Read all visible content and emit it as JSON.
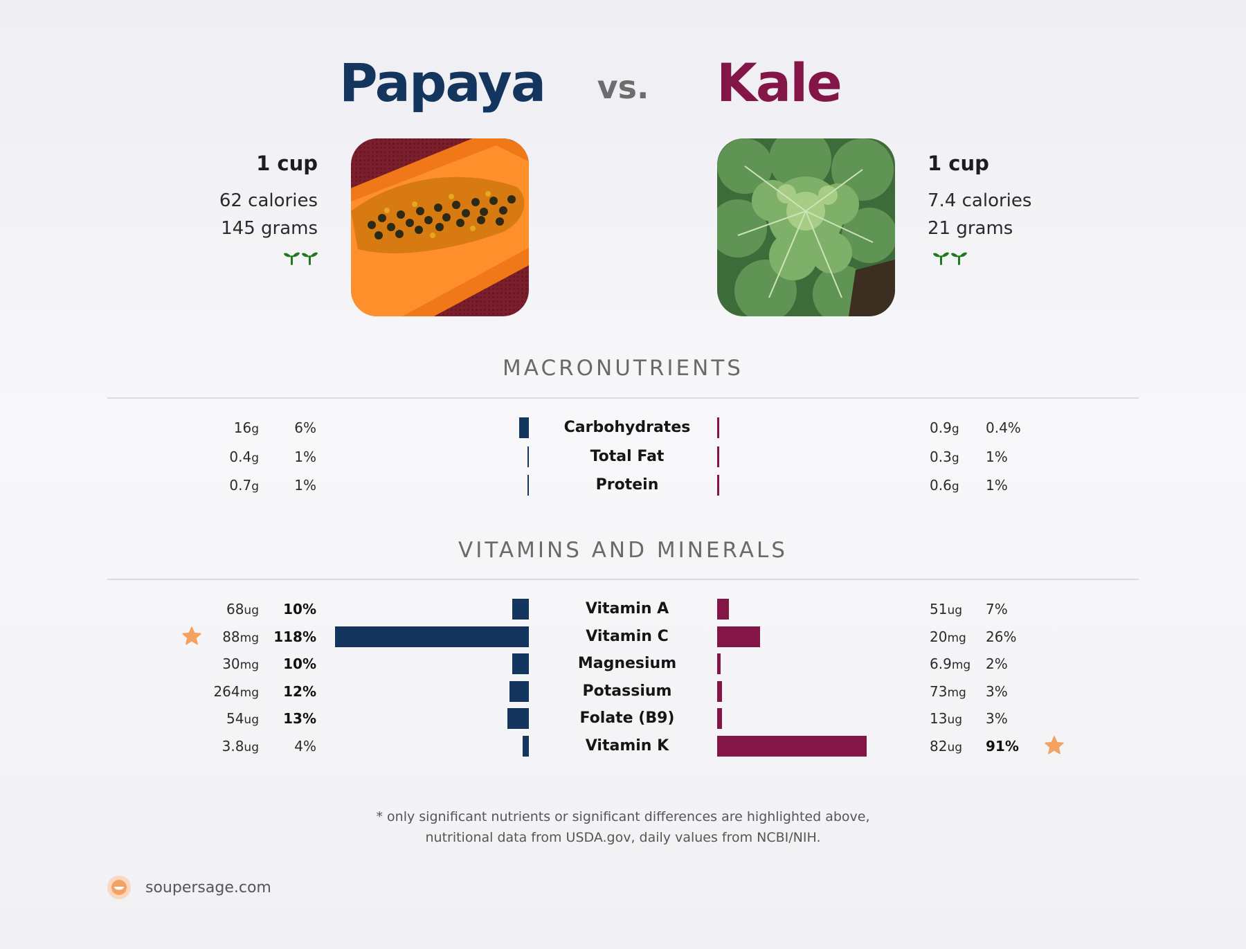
{
  "header": {
    "left_title": "Papaya",
    "vs": "vs.",
    "right_title": "Kale"
  },
  "foods": {
    "left": {
      "serving": "1 cup",
      "calories": "62 calories",
      "grams": "145 grams",
      "badge_icon": "sprout-icon"
    },
    "right": {
      "serving": "1 cup",
      "calories": "7.4 calories",
      "grams": "21 grams",
      "badge_icon": "sprout-icon"
    }
  },
  "colors": {
    "left": "#14355e",
    "right": "#831547",
    "star": "#f4a261",
    "sprout": "#1f7a1f"
  },
  "chart_data": [
    {
      "type": "bar",
      "title": "MACRONUTRIENTS",
      "categories": [
        "Carbohydrates",
        "Total Fat",
        "Protein"
      ],
      "series": [
        {
          "name": "Papaya",
          "values": [
            6,
            1,
            1
          ],
          "amounts": [
            {
              "v": "16",
              "u": "g"
            },
            {
              "v": "0.4",
              "u": "g"
            },
            {
              "v": "0.7",
              "u": "g"
            }
          ],
          "labels": [
            "6%",
            "1%",
            "1%"
          ]
        },
        {
          "name": "Kale",
          "values": [
            0.4,
            1,
            1
          ],
          "amounts": [
            {
              "v": "0.9",
              "u": "g"
            },
            {
              "v": "0.3",
              "u": "g"
            },
            {
              "v": "0.6",
              "u": "g"
            }
          ],
          "labels": [
            "0.4%",
            "1%",
            "1%"
          ]
        }
      ],
      "unit": "% daily value"
    },
    {
      "type": "bar",
      "title": "VITAMINS AND MINERALS",
      "categories": [
        "Vitamin A",
        "Vitamin C",
        "Magnesium",
        "Potassium",
        "Folate (B9)",
        "Vitamin K"
      ],
      "series": [
        {
          "name": "Papaya",
          "values": [
            10,
            118,
            10,
            12,
            13,
            4
          ],
          "amounts": [
            {
              "v": "68",
              "u": "ug"
            },
            {
              "v": "88",
              "u": "mg"
            },
            {
              "v": "30",
              "u": "mg"
            },
            {
              "v": "264",
              "u": "mg"
            },
            {
              "v": "54",
              "u": "ug"
            },
            {
              "v": "3.8",
              "u": "ug"
            }
          ],
          "labels": [
            "10%",
            "118%",
            "10%",
            "12%",
            "13%",
            "4%"
          ],
          "highlight": [
            true,
            true,
            true,
            true,
            true,
            false
          ],
          "star": [
            false,
            true,
            false,
            false,
            false,
            false
          ]
        },
        {
          "name": "Kale",
          "values": [
            7,
            26,
            2,
            3,
            3,
            91
          ],
          "amounts": [
            {
              "v": "51",
              "u": "ug"
            },
            {
              "v": "20",
              "u": "mg"
            },
            {
              "v": "6.9",
              "u": "mg"
            },
            {
              "v": "73",
              "u": "mg"
            },
            {
              "v": "13",
              "u": "ug"
            },
            {
              "v": "82",
              "u": "ug"
            }
          ],
          "labels": [
            "7%",
            "26%",
            "2%",
            "3%",
            "3%",
            "91%"
          ],
          "highlight": [
            false,
            false,
            false,
            false,
            false,
            true
          ],
          "star": [
            false,
            false,
            false,
            false,
            false,
            true
          ]
        }
      ],
      "unit": "% daily value"
    }
  ],
  "footer": {
    "note_line1": "* only significant nutrients or significant differences are highlighted above,",
    "note_line2": "nutritional data from USDA.gov, daily values from NCBI/NIH.",
    "site": "soupersage.com"
  }
}
